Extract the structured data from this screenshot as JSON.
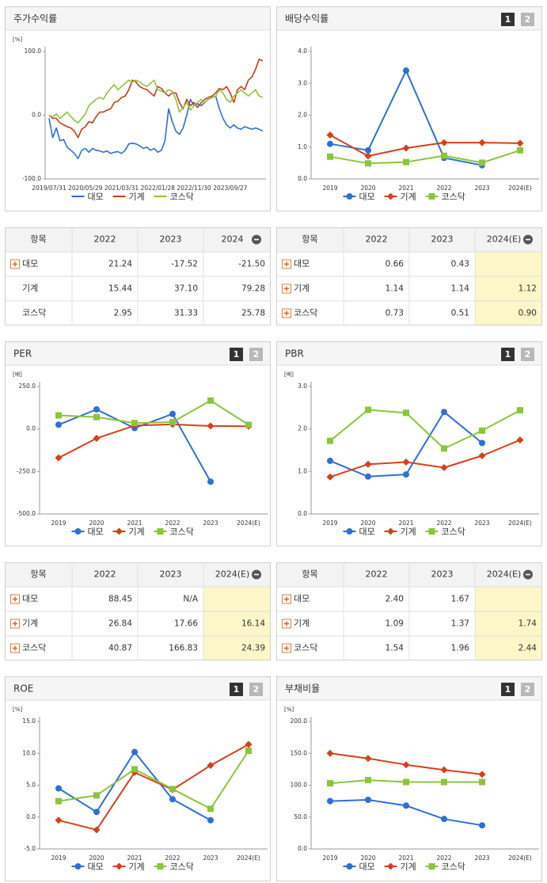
{
  "chart_data": [
    {
      "type": "line",
      "title": "주가수익률",
      "y_unit": "[%]",
      "categories": [
        "2019/07/31",
        null,
        null,
        null,
        null,
        null,
        null,
        null,
        null,
        null,
        "2020/05/29",
        null,
        null,
        null,
        null,
        null,
        null,
        null,
        null,
        null,
        "2021/03/31",
        null,
        null,
        null,
        null,
        null,
        null,
        null,
        null,
        null,
        "2022/01/28",
        null,
        null,
        null,
        null,
        null,
        null,
        null,
        null,
        null,
        "2022/11/30",
        null,
        null,
        null,
        null,
        null,
        null,
        null,
        null,
        null,
        "2023/09/27",
        null,
        null,
        null,
        null,
        null,
        null,
        null,
        null,
        null
      ],
      "series": [
        {
          "name": "대모",
          "color": "#2e6fd6",
          "values": [
            -5,
            -35,
            -20,
            -40,
            -38,
            -50,
            -55,
            -60,
            -68,
            -55,
            -52,
            -58,
            -52,
            -55,
            -56,
            -58,
            -56,
            -60,
            -58,
            -57,
            -60,
            -55,
            -45,
            -44,
            -45,
            -48,
            -52,
            -50,
            -55,
            -52,
            -58,
            -55,
            -40,
            10,
            -10,
            -25,
            -30,
            -20,
            0,
            25,
            15,
            18,
            15,
            20,
            25,
            28,
            30,
            10,
            -5,
            -15,
            -20,
            -15,
            -20,
            -22,
            -18,
            -20,
            -22,
            -20,
            -22,
            -25
          ]
        },
        {
          "name": "기계",
          "color": "#c83c18",
          "values": [
            0,
            -5,
            -5,
            -12,
            -15,
            -18,
            -20,
            -25,
            -35,
            -22,
            -18,
            -10,
            -12,
            -2,
            5,
            5,
            8,
            10,
            20,
            22,
            28,
            30,
            40,
            55,
            52,
            45,
            42,
            40,
            35,
            30,
            45,
            42,
            35,
            30,
            35,
            35,
            20,
            10,
            25,
            15,
            20,
            12,
            20,
            25,
            28,
            30,
            35,
            42,
            40,
            45,
            35,
            20,
            40,
            45,
            40,
            55,
            60,
            72,
            88,
            85
          ]
        },
        {
          "name": "코스닥",
          "color": "#8cc43c",
          "values": [
            0,
            -3,
            2,
            -5,
            0,
            5,
            -2,
            -8,
            -12,
            -5,
            2,
            15,
            20,
            25,
            28,
            25,
            35,
            42,
            48,
            40,
            45,
            50,
            55,
            52,
            55,
            52,
            48,
            45,
            50,
            55,
            40,
            38,
            35,
            40,
            38,
            25,
            5,
            12,
            20,
            8,
            15,
            20,
            25,
            20,
            25,
            28,
            30,
            40,
            35,
            25,
            20,
            30,
            35,
            40,
            35,
            30,
            35,
            40,
            30,
            28
          ]
        }
      ],
      "ylim": [
        -100,
        100
      ],
      "yticks": [
        {
          "value": 100,
          "label": "100.0"
        },
        {
          "value": 0,
          "label": "0.0"
        },
        {
          "value": -100,
          "label": "-100.0"
        }
      ]
    },
    {
      "type": "line",
      "title": "배당수익률",
      "tabs": [
        "1",
        "2"
      ],
      "categories": [
        "2019",
        "2020",
        "2021",
        "2022",
        "2023",
        "2024(E)"
      ],
      "series": [
        {
          "name": "대모",
          "color": "#2e6fd6",
          "marker": "circle",
          "values": [
            1.1,
            0.9,
            3.4,
            0.66,
            0.43,
            null
          ]
        },
        {
          "name": "기계",
          "color": "#d5401b",
          "marker": "diamond",
          "values": [
            1.38,
            0.72,
            0.97,
            1.14,
            1.14,
            1.12
          ]
        },
        {
          "name": "코스닥",
          "color": "#8cc43c",
          "marker": "square",
          "values": [
            0.7,
            0.49,
            0.53,
            0.73,
            0.51,
            0.9
          ]
        }
      ],
      "ylim": [
        0,
        4
      ],
      "yticks": [
        {
          "value": 0,
          "label": "0.0"
        },
        {
          "value": 1,
          "label": "1.0"
        },
        {
          "value": 2,
          "label": "2.0"
        },
        {
          "value": 3,
          "label": "3.0"
        },
        {
          "value": 4,
          "label": "4.0"
        }
      ]
    },
    {
      "type": "line",
      "title": "PER",
      "tabs": [
        "1",
        "2"
      ],
      "y_unit": "[배]",
      "categories": [
        "2019",
        "2020",
        "2021",
        "2022",
        "2023",
        "2024(E)"
      ],
      "series": [
        {
          "name": "대모",
          "color": "#2e6fd6",
          "marker": "circle",
          "values": [
            25,
            115,
            5,
            88.45,
            -310,
            null
          ]
        },
        {
          "name": "기계",
          "color": "#d5401b",
          "marker": "diamond",
          "values": [
            -170,
            -55,
            20,
            26.84,
            17.66,
            16.14
          ]
        },
        {
          "name": "코스닥",
          "color": "#8cc43c",
          "marker": "square",
          "values": [
            80,
            70,
            35,
            40.87,
            166.83,
            24.39
          ]
        }
      ],
      "ylim": [
        -500,
        250
      ],
      "yticks": [
        {
          "value": 250,
          "label": "250.0"
        },
        {
          "value": 0,
          "label": "0.0"
        },
        {
          "value": -250,
          "label": "-250.0"
        },
        {
          "value": -500,
          "label": "-500.0"
        }
      ]
    },
    {
      "type": "line",
      "title": "PBR",
      "tabs": [
        "1",
        "2"
      ],
      "y_unit": "[배]",
      "categories": [
        "2019",
        "2020",
        "2021",
        "2022",
        "2023",
        "2024(E)"
      ],
      "series": [
        {
          "name": "대모",
          "color": "#2e6fd6",
          "marker": "circle",
          "values": [
            1.25,
            0.88,
            0.93,
            2.4,
            1.67,
            null
          ]
        },
        {
          "name": "기계",
          "color": "#d5401b",
          "marker": "diamond",
          "values": [
            0.87,
            1.17,
            1.22,
            1.09,
            1.37,
            1.74
          ]
        },
        {
          "name": "코스닥",
          "color": "#8cc43c",
          "marker": "square",
          "values": [
            1.72,
            2.45,
            2.38,
            1.54,
            1.96,
            2.44
          ]
        }
      ],
      "ylim": [
        0,
        3
      ],
      "yticks": [
        {
          "value": 0,
          "label": "0.0"
        },
        {
          "value": 1,
          "label": "1.0"
        },
        {
          "value": 2,
          "label": "2.0"
        },
        {
          "value": 3,
          "label": "3.0"
        }
      ]
    },
    {
      "type": "line",
      "title": "ROE",
      "tabs": [
        "1",
        "2"
      ],
      "y_unit": "[%]",
      "categories": [
        "2019",
        "2020",
        "2021",
        "2022",
        "2023",
        "2024(E)"
      ],
      "series": [
        {
          "name": "대모",
          "color": "#2e6fd6",
          "marker": "circle",
          "values": [
            4.5,
            0.8,
            10.2,
            2.8,
            -0.5,
            null
          ]
        },
        {
          "name": "기계",
          "color": "#d5401b",
          "marker": "diamond",
          "values": [
            -0.5,
            -2.0,
            7.0,
            4.3,
            8.1,
            11.4
          ]
        },
        {
          "name": "코스닥",
          "color": "#8cc43c",
          "marker": "square",
          "values": [
            2.5,
            3.4,
            7.5,
            4.4,
            1.3,
            10.4
          ]
        }
      ],
      "ylim": [
        -5,
        15
      ],
      "yticks": [
        {
          "value": -5,
          "label": "-5.0"
        },
        {
          "value": 0,
          "label": "0.0"
        },
        {
          "value": 5,
          "label": "5.0"
        },
        {
          "value": 10,
          "label": "10.0"
        },
        {
          "value": 15,
          "label": "15.0"
        }
      ]
    },
    {
      "type": "line",
      "title": "부채비율",
      "tabs": [
        "1",
        "2"
      ],
      "y_unit": "[%]",
      "categories": [
        "2019",
        "2020",
        "2021",
        "2022",
        "2023",
        "2024(E)"
      ],
      "series": [
        {
          "name": "대모",
          "color": "#2e6fd6",
          "marker": "circle",
          "values": [
            75,
            77,
            68,
            47,
            37,
            null
          ]
        },
        {
          "name": "기계",
          "color": "#d5401b",
          "marker": "diamond",
          "values": [
            150,
            142,
            132,
            124,
            117,
            null
          ]
        },
        {
          "name": "코스닥",
          "color": "#8cc43c",
          "marker": "square",
          "values": [
            103,
            108,
            105,
            105,
            105,
            null
          ]
        }
      ],
      "ylim": [
        0,
        200
      ],
      "yticks": [
        {
          "value": 0,
          "label": "0.0"
        },
        {
          "value": 50,
          "label": "50.0"
        },
        {
          "value": 100,
          "label": "100.0"
        },
        {
          "value": 150,
          "label": "150.0"
        },
        {
          "value": 200,
          "label": "200.0"
        }
      ]
    }
  ],
  "tables": [
    {
      "columns": [
        "항목",
        "2022",
        "2023",
        "2024"
      ],
      "rows": [
        {
          "label": "대모",
          "expandable": true,
          "values": [
            "21.24",
            "-17.52",
            "-21.50"
          ]
        },
        {
          "label": "기계",
          "values": [
            "15.44",
            "37.10",
            "79.28"
          ]
        },
        {
          "label": "코스닥",
          "values": [
            "2.95",
            "31.33",
            "25.78"
          ]
        }
      ]
    },
    {
      "columns": [
        "항목",
        "2022",
        "2023",
        "2024(E)"
      ],
      "highlight_last": true,
      "rows": [
        {
          "label": "대모",
          "expandable": true,
          "values": [
            "0.66",
            "0.43",
            null
          ]
        },
        {
          "label": "기계",
          "expandable": true,
          "values": [
            "1.14",
            "1.14",
            "1.12"
          ]
        },
        {
          "label": "코스닥",
          "expandable": true,
          "values": [
            "0.73",
            "0.51",
            "0.90"
          ]
        }
      ]
    },
    {
      "columns": [
        "항목",
        "2022",
        "2023",
        "2024(E)"
      ],
      "highlight_last": true,
      "rows": [
        {
          "label": "대모",
          "expandable": true,
          "values": [
            "88.45",
            "N/A",
            null
          ]
        },
        {
          "label": "기계",
          "expandable": true,
          "values": [
            "26.84",
            "17.66",
            "16.14"
          ]
        },
        {
          "label": "코스닥",
          "expandable": true,
          "values": [
            "40.87",
            "166.83",
            "24.39"
          ]
        }
      ]
    },
    {
      "columns": [
        "항목",
        "2022",
        "2023",
        "2024(E)"
      ],
      "highlight_last": true,
      "rows": [
        {
          "label": "대모",
          "expandable": true,
          "values": [
            "2.40",
            "1.67",
            null
          ]
        },
        {
          "label": "기계",
          "expandable": true,
          "values": [
            "1.09",
            "1.37",
            "1.74"
          ]
        },
        {
          "label": "코스닥",
          "expandable": true,
          "values": [
            "1.54",
            "1.96",
            "2.44"
          ]
        }
      ]
    }
  ]
}
